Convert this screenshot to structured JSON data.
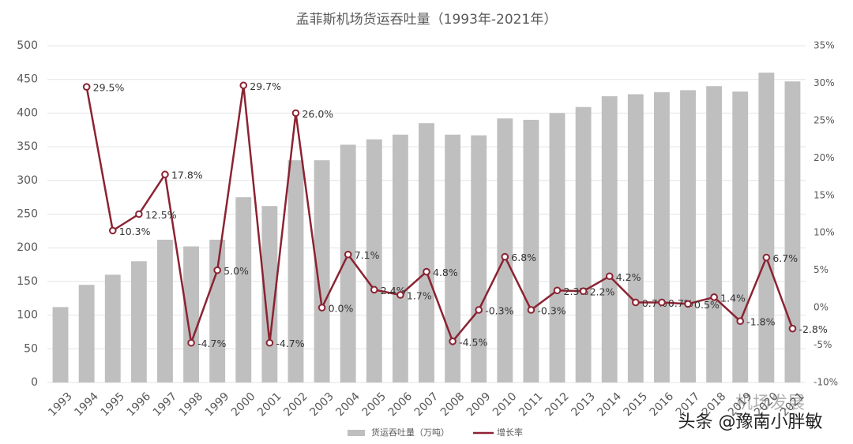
{
  "chart_data": {
    "type": "bar-line",
    "title": "孟菲斯机场货运吞吐量（1993年-2021年）",
    "categories": [
      "1993",
      "1994",
      "1995",
      "1996",
      "1997",
      "1998",
      "1999",
      "2000",
      "2001",
      "2002",
      "2003",
      "2004",
      "2005",
      "2006",
      "2007",
      "2008",
      "2009",
      "2010",
      "2011",
      "2012",
      "2013",
      "2014",
      "2015",
      "2016",
      "2017",
      "2018",
      "2019",
      "2020",
      "2021"
    ],
    "series": [
      {
        "name": "货运吞吐量（万吨）",
        "type": "bar",
        "color": "#bfbfbf",
        "values": [
          112,
          145,
          160,
          180,
          212,
          202,
          212,
          275,
          262,
          330,
          330,
          353,
          361,
          368,
          385,
          368,
          367,
          392,
          390,
          400,
          409,
          425,
          428,
          431,
          434,
          440,
          432,
          460,
          447
        ]
      },
      {
        "name": "增长率",
        "type": "line",
        "axis": "y2",
        "color": "#8b2332",
        "values": [
          null,
          29.5,
          10.3,
          12.5,
          17.8,
          -4.7,
          5.0,
          29.7,
          -4.7,
          26.0,
          0.0,
          7.1,
          2.4,
          1.7,
          4.8,
          -4.5,
          -0.3,
          6.8,
          -0.3,
          2.3,
          2.2,
          4.2,
          0.7,
          0.7,
          0.5,
          1.4,
          -1.8,
          6.7,
          -2.8
        ],
        "value_labels": [
          null,
          "29.5%",
          "10.3%",
          "12.5%",
          "17.8%",
          "-4.7%",
          "5.0%",
          "29.7%",
          "-4.7%",
          "26.0%",
          "0.0%",
          "7.1%",
          "2.4%",
          "1.7%",
          "4.8%",
          "-4.5%",
          "-0.3%",
          "6.8%",
          "-0.3%",
          "2.3%",
          "2.2%",
          "4.2%",
          "0.7%",
          "0.7%",
          "0.5%",
          "1.4%",
          "-1.8%",
          "6.7%",
          "-2.8%"
        ]
      }
    ],
    "ylim": [
      0,
      500
    ],
    "yticks": [
      0,
      50,
      100,
      150,
      200,
      250,
      300,
      350,
      400,
      450,
      500
    ],
    "y2lim": [
      -10,
      35
    ],
    "y2ticks": [
      {
        "value": -10,
        "label": "-10%"
      },
      {
        "value": -5,
        "label": "-5%"
      },
      {
        "value": 0,
        "label": "0%"
      },
      {
        "value": 5,
        "label": "5%"
      },
      {
        "value": 10,
        "label": "10%"
      },
      {
        "value": 15,
        "label": "15%"
      },
      {
        "value": 20,
        "label": "20%"
      },
      {
        "value": 25,
        "label": "25%"
      },
      {
        "value": 30,
        "label": "30%"
      },
      {
        "value": 35,
        "label": "35%"
      }
    ],
    "grid": true,
    "legend": "bottom"
  },
  "watermark": {
    "source": "机场发展",
    "author": "头条 @豫南小胖敏"
  }
}
